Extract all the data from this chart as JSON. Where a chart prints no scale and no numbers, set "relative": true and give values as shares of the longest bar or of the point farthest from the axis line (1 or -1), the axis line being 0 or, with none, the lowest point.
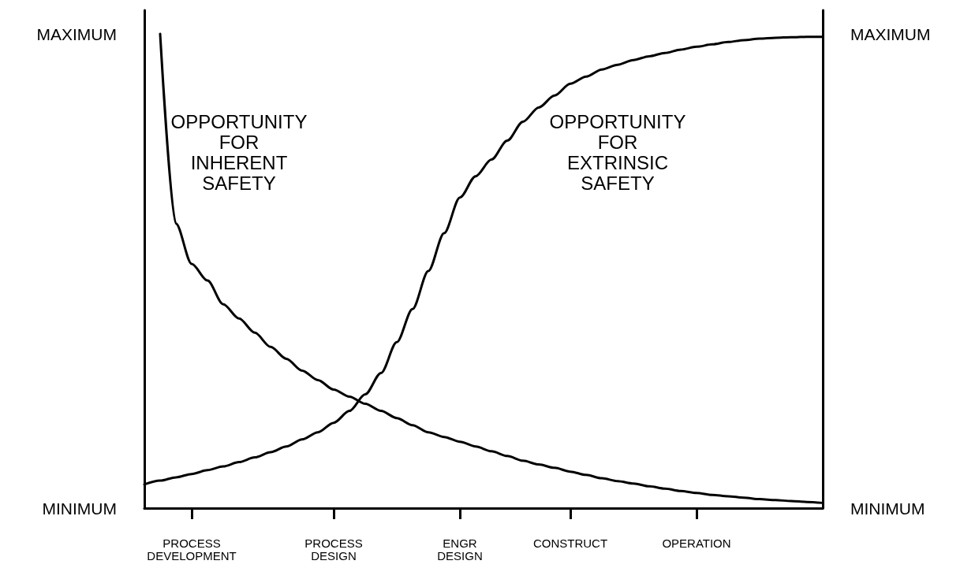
{
  "chart_data": {
    "type": "line",
    "relative": true,
    "categories": [
      null,
      null,
      null,
      "PROCESS\nDEVELOPMENT",
      null,
      null,
      null,
      null,
      null,
      null,
      null,
      null,
      "PROCESS\nDESIGN",
      null,
      null,
      null,
      null,
      null,
      null,
      null,
      "ENGR\nDESIGN",
      null,
      null,
      null,
      null,
      null,
      null,
      "CONSTRUCT",
      null,
      null,
      null,
      null,
      null,
      null,
      null,
      "OPERATION",
      null,
      null,
      null,
      null,
      null,
      null,
      null,
      null
    ],
    "series": [
      {
        "color": "#000000",
        "values": [
          null,
          1.0,
          0.6,
          0.515,
          0.48,
          0.43,
          0.4,
          0.37,
          0.34,
          0.315,
          0.29,
          0.27,
          0.25,
          0.235,
          0.22,
          0.205,
          0.19,
          0.175,
          0.16,
          0.15,
          0.14,
          0.13,
          0.12,
          0.11,
          0.1,
          0.092,
          0.085,
          0.077,
          0.07,
          0.063,
          0.057,
          0.052,
          0.046,
          0.041,
          0.036,
          0.032,
          0.028,
          0.025,
          0.022,
          0.019,
          0.017,
          0.015,
          0.013,
          0.011
        ]
      },
      {
        "color": "#000000",
        "values": [
          0.05,
          0.058,
          0.065,
          0.072,
          0.08,
          0.088,
          0.097,
          0.107,
          0.118,
          0.13,
          0.145,
          0.16,
          0.18,
          0.205,
          0.24,
          0.285,
          0.35,
          0.42,
          0.5,
          0.58,
          0.655,
          0.7,
          0.735,
          0.775,
          0.815,
          0.845,
          0.87,
          0.895,
          0.91,
          0.925,
          0.935,
          0.945,
          0.953,
          0.96,
          0.967,
          0.973,
          0.978,
          0.983,
          0.987,
          0.99,
          0.992,
          0.993,
          0.994,
          0.994
        ]
      }
    ],
    "annotations": [
      "OPPORTUNITY\nFOR\nINHERENT\nSAFETY",
      "OPPORTUNITY\nFOR\nEXTRINSIC\nSAFETY",
      "MAXIMUM",
      "MINIMUM",
      "MAXIMUM",
      "MINIMUM"
    ],
    "grid": false,
    "marker": "none",
    "line_style": "solid"
  }
}
